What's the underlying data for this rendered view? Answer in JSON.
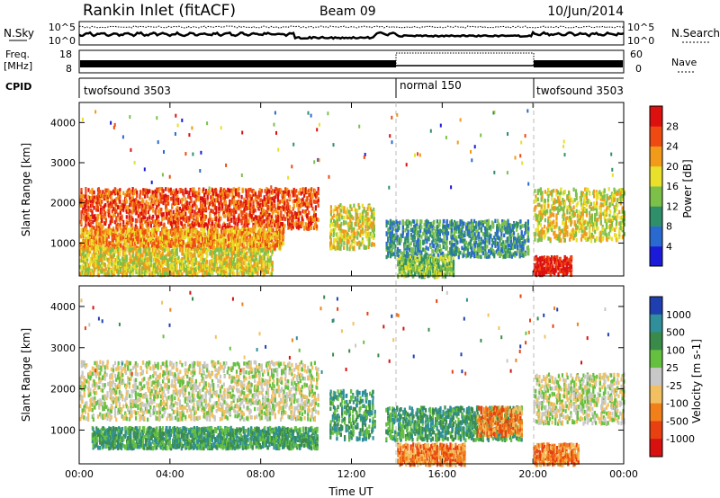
{
  "header": {
    "station": "Rankin Inlet (fitACF)",
    "beam": "Beam 09",
    "date": "10/Jun/2014"
  },
  "summary_panels": {
    "nsky_label": "N.Sky",
    "nsearch_label": "N.Search",
    "nsky_ticks": [
      "10^5",
      "10^0"
    ],
    "nsearch_ticks": [
      "10^5",
      "10^0"
    ],
    "freq_label_line1": "Freq.",
    "freq_label_line2": "[MHz]",
    "freq_ticks": [
      "18",
      "8"
    ],
    "nave_ticks": [
      "60",
      "0"
    ],
    "nave_label": "Nave",
    "cpid_label": "CPID",
    "cpid_segments": [
      {
        "label": "twofsound 3503",
        "start_hour": 0,
        "end_hour": 14
      },
      {
        "label": "normal 150",
        "start_hour": 14,
        "end_hour": 20
      },
      {
        "label": "twofsound 3503",
        "start_hour": 20,
        "end_hour": 24
      }
    ]
  },
  "chart_data": [
    {
      "type": "heatmap",
      "quantity": "Power",
      "ylabel": "Slant Range [km]",
      "ylim": [
        180,
        4500
      ],
      "y_ticks": [
        1000,
        2000,
        3000,
        4000
      ],
      "xlim": [
        0,
        24
      ],
      "x_ticks": [
        "00:00",
        "04:00",
        "08:00",
        "12:00",
        "16:00",
        "20:00",
        "00:00"
      ],
      "colorbar": {
        "label": "Power [dB]",
        "ticks": [
          "4",
          "8",
          "12",
          "16",
          "20",
          "24",
          "28"
        ],
        "colors": [
          "#1a1ad8",
          "#2a6ad0",
          "#2f8f6a",
          "#7cc04a",
          "#e8e02a",
          "#f29a1a",
          "#ee4a12",
          "#dd1010"
        ]
      },
      "scatter_regions": [
        {
          "start_hour": 0.0,
          "end_hour": 10.5,
          "range_km": [
            1400,
            2400
          ],
          "level": 6
        },
        {
          "start_hour": 0.0,
          "end_hour": 9.0,
          "range_km": [
            900,
            1400
          ],
          "level": 5
        },
        {
          "start_hour": 0.0,
          "end_hour": 8.5,
          "range_km": [
            250,
            900
          ],
          "level": 4
        },
        {
          "start_hour": 11.0,
          "end_hour": 13.0,
          "range_km": [
            900,
            2000
          ],
          "level": 4
        },
        {
          "start_hour": 13.5,
          "end_hour": 19.8,
          "range_km": [
            700,
            1600
          ],
          "level": 2
        },
        {
          "start_hour": 14.0,
          "end_hour": 16.5,
          "range_km": [
            200,
            700
          ],
          "level": 3
        },
        {
          "start_hour": 20.0,
          "end_hour": 21.7,
          "range_km": [
            250,
            700
          ],
          "level": 7
        },
        {
          "start_hour": 20.0,
          "end_hour": 24.0,
          "range_km": [
            1100,
            2400
          ],
          "level": 4
        }
      ]
    },
    {
      "type": "heatmap",
      "quantity": "Velocity",
      "ylabel": "Slant Range [km]",
      "xlabel": "Time UT",
      "ylim": [
        180,
        4500
      ],
      "y_ticks": [
        1000,
        2000,
        3000,
        4000
      ],
      "xlim": [
        0,
        24
      ],
      "x_ticks": [
        "00:00",
        "04:00",
        "08:00",
        "12:00",
        "16:00",
        "20:00",
        "00:00"
      ],
      "colorbar": {
        "label": "Velocity [m s-1]",
        "ticks": [
          "1000",
          "500",
          "100",
          "25",
          "-25",
          "-100",
          "-500",
          "-1000"
        ],
        "colors": [
          "#1f3fb0",
          "#2f8f9a",
          "#3a8a4a",
          "#66c040",
          "#c8c8c8",
          "#f2c060",
          "#f2801a",
          "#e84010",
          "#d81010"
        ]
      },
      "scatter_regions": [
        {
          "start_hour": 0.0,
          "end_hour": 10.5,
          "range_km": [
            1300,
            2700
          ],
          "level": 4
        },
        {
          "start_hour": 0.5,
          "end_hour": 10.5,
          "range_km": [
            600,
            1100
          ],
          "level": 2
        },
        {
          "start_hour": 11.0,
          "end_hour": 13.0,
          "range_km": [
            800,
            2000
          ],
          "level": 2
        },
        {
          "start_hour": 13.5,
          "end_hour": 19.5,
          "range_km": [
            800,
            1600
          ],
          "level": 2
        },
        {
          "start_hour": 14.0,
          "end_hour": 17.0,
          "range_km": [
            200,
            700
          ],
          "level": 6
        },
        {
          "start_hour": 17.5,
          "end_hour": 19.5,
          "range_km": [
            900,
            1600
          ],
          "level": 6
        },
        {
          "start_hour": 20.0,
          "end_hour": 22.0,
          "range_km": [
            200,
            700
          ],
          "level": 6
        },
        {
          "start_hour": 20.0,
          "end_hour": 24.0,
          "range_km": [
            1200,
            2400
          ],
          "level": 4
        }
      ]
    }
  ]
}
